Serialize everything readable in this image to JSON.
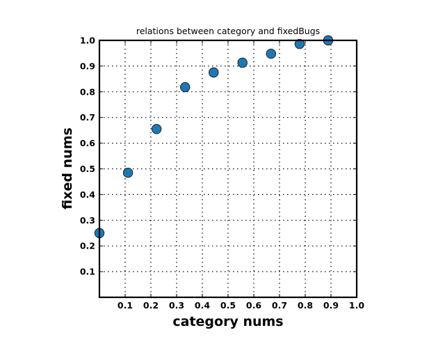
{
  "colors": {
    "point_fill": "#1f77b4",
    "axis": "#000000",
    "background": "#ffffff"
  },
  "chart_data": {
    "type": "scatter",
    "title": "relations between category and fixedBugs",
    "xlabel": "category nums",
    "ylabel": "fixed nums",
    "xlim": [
      0,
      1.0
    ],
    "ylim": [
      0,
      1.0
    ],
    "grid": true,
    "x_ticks": [
      0.1,
      0.2,
      0.3,
      0.4,
      0.5,
      0.6,
      0.7,
      0.8,
      0.9,
      1.0
    ],
    "y_ticks": [
      0.1,
      0.2,
      0.3,
      0.4,
      0.5,
      0.6,
      0.7,
      0.8,
      0.9,
      1.0
    ],
    "x_tick_labels": [
      "0.1",
      "0.2",
      "0.3",
      "0.4",
      "0.5",
      "0.6",
      "0.7",
      "0.8",
      "0.9",
      "1.0"
    ],
    "y_tick_labels": [
      "0.1",
      "0.2",
      "0.3",
      "0.4",
      "0.5",
      "0.6",
      "0.7",
      "0.8",
      "0.9",
      "1.0"
    ],
    "series": [
      {
        "x": [
          0.0,
          0.111,
          0.222,
          0.333,
          0.444,
          0.556,
          0.667,
          0.778,
          0.889
        ],
        "y": [
          0.25,
          0.485,
          0.655,
          0.818,
          0.875,
          0.913,
          0.948,
          0.986,
          1.0
        ]
      }
    ]
  }
}
